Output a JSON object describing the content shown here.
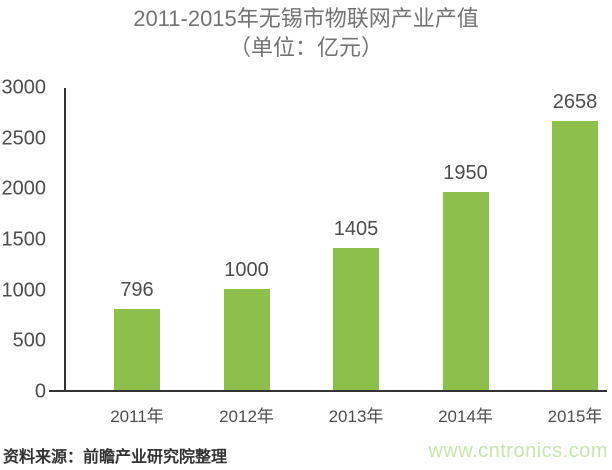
{
  "title": {
    "line1": "2011-2015年无锡市物联网产业产值",
    "line2": "（单位：亿元）"
  },
  "chart_data": {
    "type": "bar",
    "title": "2011-2015年无锡市物联网产业产值（单位：亿元）",
    "categories": [
      "2011年",
      "2012年",
      "2013年",
      "2014年",
      "2015年"
    ],
    "values": [
      796,
      1000,
      1405,
      1950,
      2658
    ],
    "xlabel": "",
    "ylabel": "",
    "ylim": [
      0,
      3000
    ],
    "yticks": [
      0,
      500,
      1000,
      1500,
      2000,
      2500,
      3000
    ],
    "grid": false,
    "legend": "none",
    "bar_color": "#8dbf4c"
  },
  "footer": {
    "source": "资料来源：前瞻产业研究院整理",
    "watermark": "www.cntronics.com"
  },
  "colors": {
    "bar": "#8dbf4c",
    "axis_line": "#333333",
    "title_text": "#737373",
    "tick_text": "#4d4d4d",
    "data_label_text": "#4d4d4d",
    "source_text": "#333333",
    "watermark_text": "#c9e5ae",
    "background": "#ffffff"
  }
}
